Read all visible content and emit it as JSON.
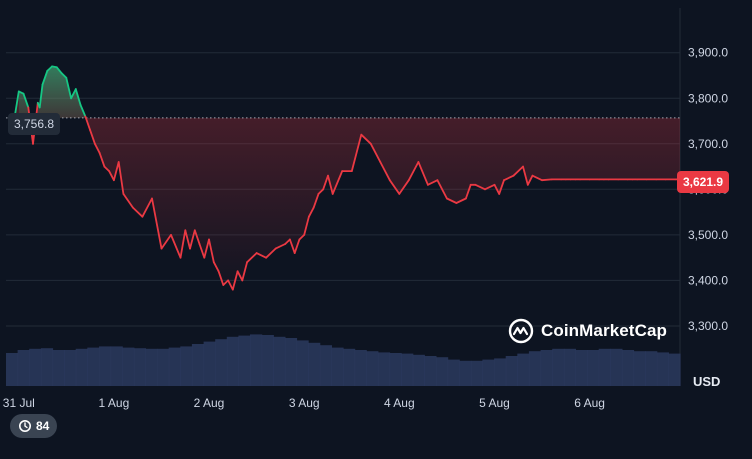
{
  "chart_data": {
    "type": "area",
    "title": "",
    "xlabel": "",
    "ylabel": "USD",
    "ylim": [
      3200,
      4000
    ],
    "y_ticks": [
      {
        "value": 3900,
        "label": "3,900.0"
      },
      {
        "value": 3800,
        "label": "3,800.0"
      },
      {
        "value": 3700,
        "label": "3,700.0"
      },
      {
        "value": 3600,
        "label": "3,600.0"
      },
      {
        "value": 3500,
        "label": "3,500.0"
      },
      {
        "value": 3400,
        "label": "3,400.0"
      },
      {
        "value": 3300,
        "label": "3,300.0"
      }
    ],
    "x_ticks": [
      {
        "value": 0,
        "label": "31 Jul"
      },
      {
        "value": 1,
        "label": "1 Aug"
      },
      {
        "value": 2,
        "label": "2 Aug"
      },
      {
        "value": 3,
        "label": "3 Aug"
      },
      {
        "value": 4,
        "label": "4 Aug"
      },
      {
        "value": 5,
        "label": "5 Aug"
      },
      {
        "value": 6,
        "label": "6 Aug"
      }
    ],
    "xlim": [
      -0.05,
      6.95
    ],
    "grid": "horizontal",
    "reference_line": {
      "value": 3756.8,
      "label": "3,756.8"
    },
    "last_value": {
      "value": 3621.9,
      "label": "3,621.9"
    },
    "colors": {
      "up": "#16c784",
      "down": "#ea3943",
      "volume": "#2b3a5e",
      "background": "#0d1421"
    },
    "series": [
      {
        "x": [
          -0.05,
          0.0,
          0.05,
          0.1,
          0.15,
          0.2,
          0.22,
          0.25,
          0.3,
          0.35,
          0.4,
          0.45,
          0.5,
          0.55,
          0.6,
          0.65,
          0.7,
          0.75,
          0.8,
          0.85,
          0.9,
          0.95,
          1.0,
          1.05,
          1.1,
          1.2,
          1.3,
          1.4,
          1.5,
          1.6,
          1.7,
          1.75,
          1.8,
          1.85,
          1.9,
          1.95,
          2.0,
          2.05,
          2.1,
          2.15,
          2.2,
          2.25,
          2.3,
          2.35,
          2.4,
          2.5,
          2.6,
          2.7,
          2.8,
          2.85,
          2.9,
          2.95,
          3.0,
          3.05,
          3.1,
          3.15,
          3.2,
          3.25,
          3.3,
          3.4,
          3.5,
          3.6,
          3.7,
          3.8,
          3.9,
          4.0,
          4.1,
          4.2,
          4.3,
          4.4,
          4.5,
          4.6,
          4.7,
          4.75,
          4.8,
          4.9,
          5.0,
          5.05,
          5.1,
          5.2,
          5.3,
          5.35,
          5.4,
          5.5,
          5.6,
          5.7,
          5.75,
          5.8,
          5.85,
          5.9,
          6.0,
          6.1,
          6.15,
          6.2,
          6.3,
          6.4,
          6.45,
          6.5,
          6.6,
          6.7,
          6.8,
          6.9,
          6.95
        ],
        "y": [
          3750,
          3815,
          3810,
          3780,
          3700,
          3790,
          3780,
          3830,
          3860,
          3870,
          3868,
          3855,
          3845,
          3800,
          3820,
          3785,
          3760,
          3730,
          3700,
          3680,
          3650,
          3640,
          3620,
          3660,
          3590,
          3560,
          3540,
          3580,
          3470,
          3500,
          3450,
          3510,
          3470,
          3510,
          3480,
          3450,
          3490,
          3440,
          3420,
          3390,
          3400,
          3380,
          3420,
          3400,
          3440,
          3460,
          3450,
          3470,
          3480,
          3490,
          3460,
          3490,
          3500,
          3540,
          3560,
          3590,
          3600,
          3630,
          3590,
          3640,
          3640,
          3720,
          3700,
          3660,
          3620,
          3590,
          3620,
          3660,
          3610,
          3620,
          3580,
          3570,
          3580,
          3610,
          3610,
          3600,
          3610,
          3590,
          3620,
          3630,
          3650,
          3610,
          3630,
          3620,
          3621.9,
          3621.9,
          3621.9,
          3621.9,
          3621.9,
          3621.9,
          3621.9,
          3621.9,
          3621.9,
          3621.9,
          3621.9,
          3621.9,
          3621.9,
          3621.9,
          3621.9,
          3621.9,
          3621.9,
          3621.9,
          3621.9
        ]
      }
    ],
    "volume_relative": [
      0.55,
      0.6,
      0.62,
      0.63,
      0.6,
      0.6,
      0.62,
      0.64,
      0.66,
      0.66,
      0.64,
      0.63,
      0.62,
      0.62,
      0.64,
      0.66,
      0.7,
      0.74,
      0.78,
      0.82,
      0.84,
      0.86,
      0.85,
      0.82,
      0.8,
      0.76,
      0.72,
      0.68,
      0.64,
      0.62,
      0.6,
      0.58,
      0.56,
      0.55,
      0.54,
      0.52,
      0.5,
      0.48,
      0.44,
      0.42,
      0.42,
      0.44,
      0.46,
      0.5,
      0.54,
      0.58,
      0.6,
      0.62,
      0.62,
      0.6,
      0.6,
      0.62,
      0.62,
      0.6,
      0.58,
      0.58,
      0.56,
      0.54
    ]
  },
  "ui": {
    "brand": "CoinMarketCap",
    "history_count": "84",
    "icons": {
      "brand": "coinmarketcap-logo-icon",
      "history": "history-icon"
    }
  }
}
